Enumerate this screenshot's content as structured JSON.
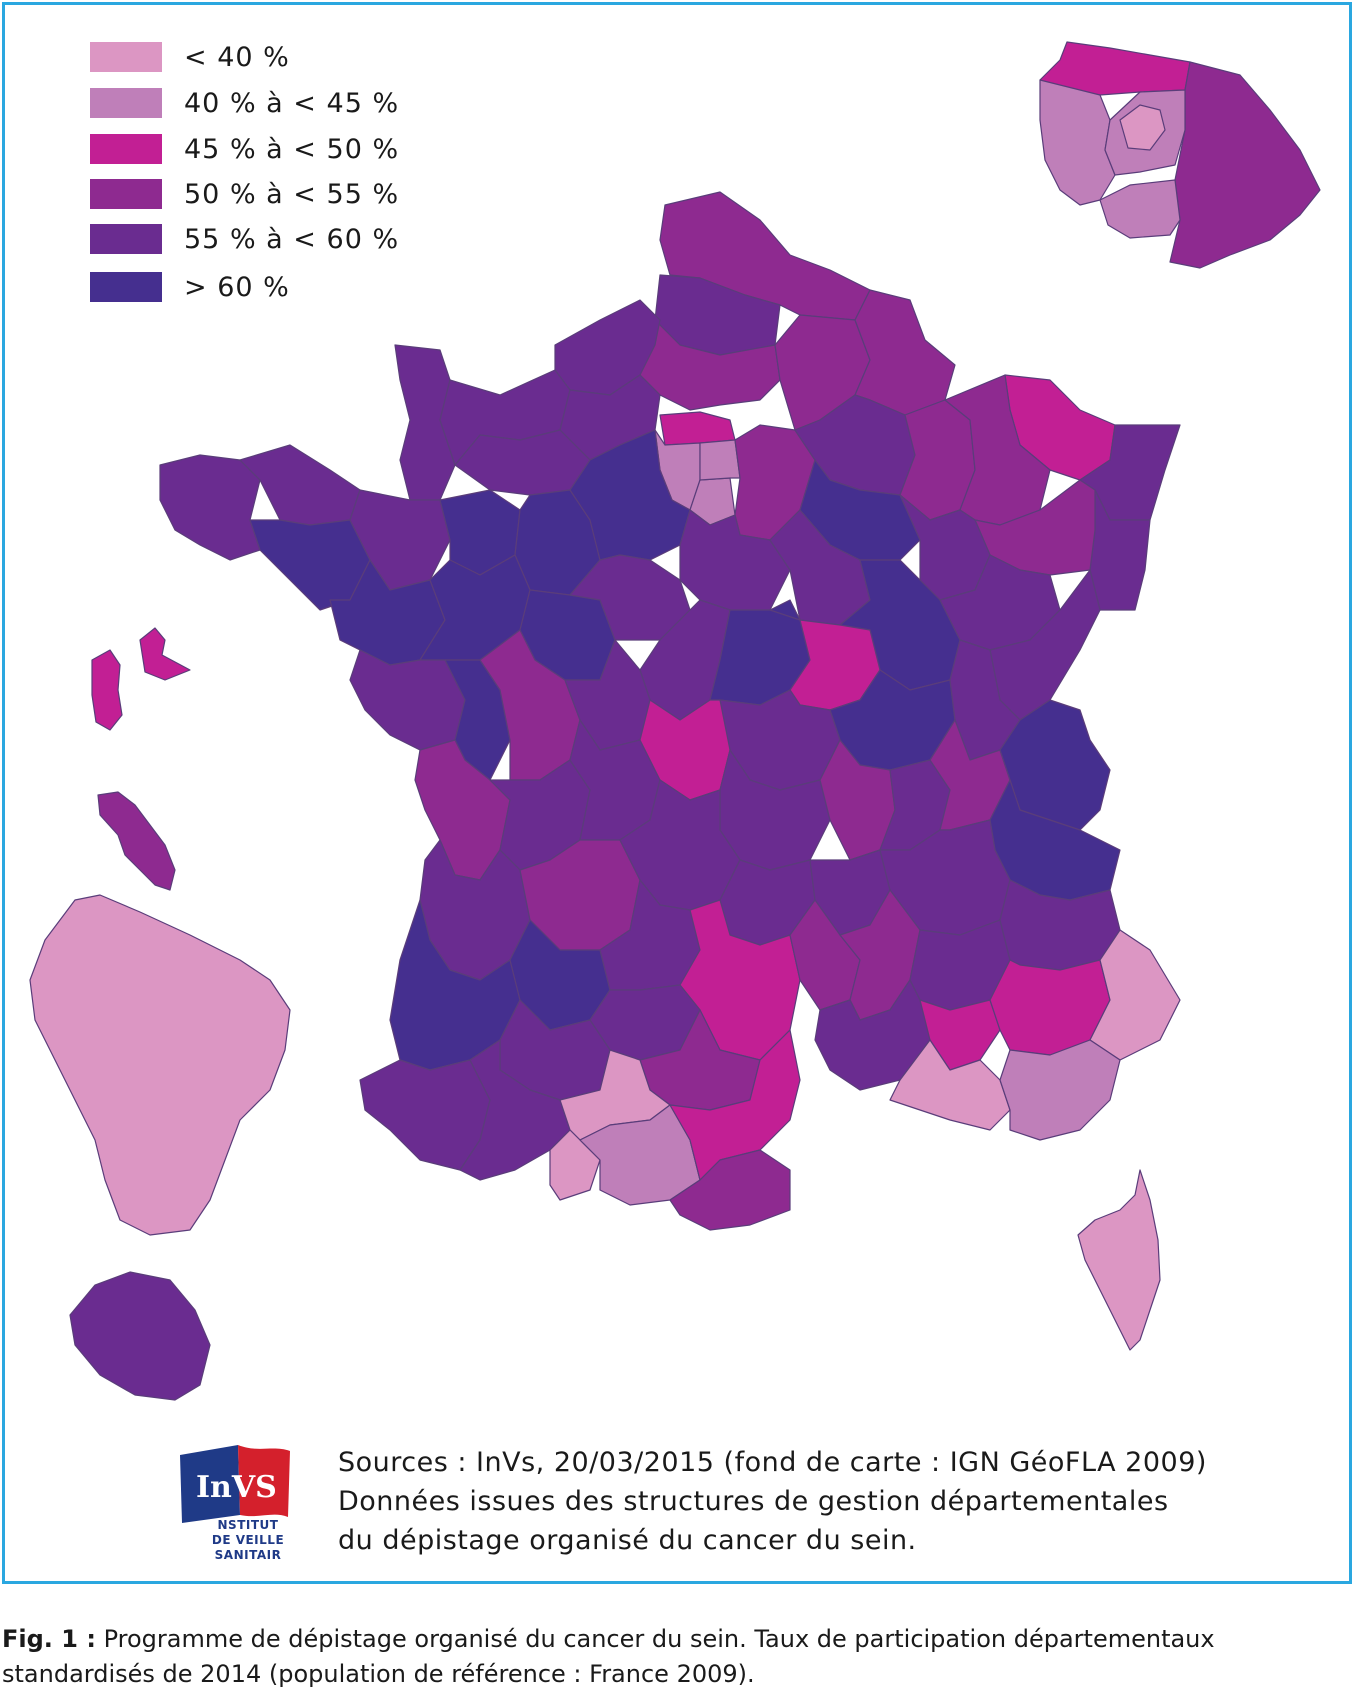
{
  "legend": {
    "items": [
      {
        "label": "< 40 %",
        "color": "#dc96c3"
      },
      {
        "label": "40 % à < 45 %",
        "color": "#bf7fb9"
      },
      {
        "label": "45 % à < 50 %",
        "color": "#c21f94"
      },
      {
        "label": "50 % à < 55 %",
        "color": "#8e2a90"
      },
      {
        "label": "55 % à < 60 %",
        "color": "#6a2c90"
      },
      {
        "label": "> 60 %",
        "color": "#452f8f"
      }
    ]
  },
  "logo": {
    "text": "InVS",
    "caption_line1": "NSTITUT",
    "caption_line2": "DE VEILLE SANITAIR"
  },
  "sources": {
    "line1": "Sources : InVs, 20/03/2015 (fond de carte : IGN GéoFLA 2009)",
    "line2": "Données issues des structures de gestion départementales",
    "line3": "du dépistage organisé du cancer du sein."
  },
  "caption": {
    "label": "Fig. 1 :",
    "text": "Programme de dépistage organisé du cancer du sein. Taux de participation départementaux standardisés de 2014 (population de référence : France 2009)."
  },
  "colors": {
    "frame": "#2aa7e0",
    "border": "#5a3d7a"
  }
}
